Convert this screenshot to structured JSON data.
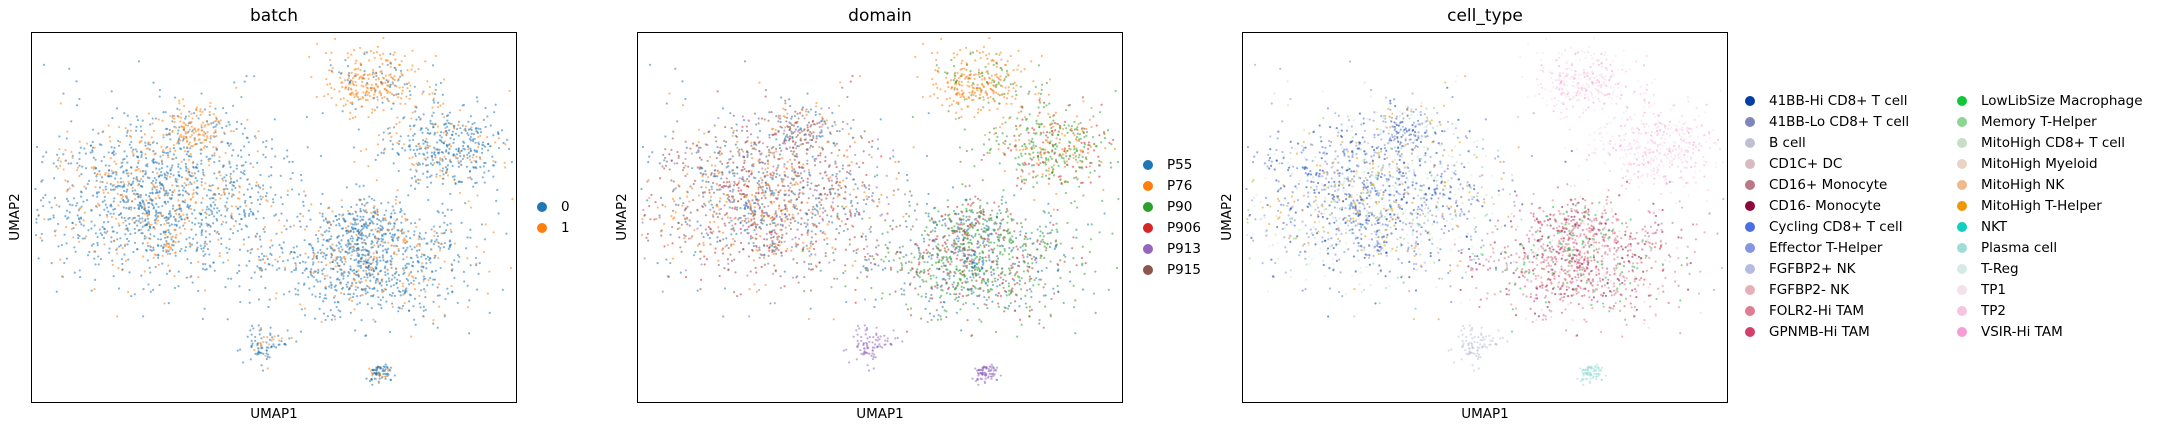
{
  "chart_data": [
    {
      "type": "scatter",
      "title": "batch",
      "xlabel": "UMAP1",
      "ylabel": "UMAP2",
      "grid": false,
      "legend_position": "right",
      "categories": [
        "0",
        "1"
      ],
      "colors": [
        "#1f77b4",
        "#ff7f0e"
      ]
    },
    {
      "type": "scatter",
      "title": "domain",
      "xlabel": "UMAP1",
      "ylabel": "UMAP2",
      "grid": false,
      "legend_position": "right",
      "categories": [
        "P55",
        "P76",
        "P90",
        "P906",
        "P913",
        "P915"
      ],
      "colors": [
        "#1f77b4",
        "#ff7f0e",
        "#2ca02c",
        "#d62728",
        "#9467bd",
        "#8c564b"
      ]
    },
    {
      "type": "scatter",
      "title": "cell_type",
      "xlabel": "UMAP1",
      "ylabel": "UMAP2",
      "grid": false,
      "legend_position": "right, two columns",
      "categories": [
        "41BB-Hi CD8+ T cell",
        "41BB-Lo CD8+ T cell",
        "B cell",
        "CD1C+ DC",
        "CD16+ Monocyte",
        "CD16- Monocyte",
        "Cycling CD8+ T cell",
        "Effector T-Helper",
        "FGFBP2+ NK",
        "FGFBP2- NK",
        "FOLR2-Hi TAM",
        "GPNMB-Hi TAM",
        "LowLibSize Macrophage",
        "Memory T-Helper",
        "MitoHigh CD8+ T cell",
        "MitoHigh Myeloid",
        "MitoHigh NK",
        "MitoHigh T-Helper",
        "NKT",
        "Plasma cell",
        "T-Reg",
        "TP1",
        "TP2",
        "VSIR-Hi TAM"
      ],
      "colors": [
        "#023fa5",
        "#7d87b9",
        "#bec1d4",
        "#d6bcc0",
        "#bb7784",
        "#8e063b",
        "#4a6fe3",
        "#8595e1",
        "#b5bbe3",
        "#e6afb9",
        "#e07b91",
        "#d33f6a",
        "#11c638",
        "#8dd593",
        "#c6dec7",
        "#ead3c6",
        "#f0b98d",
        "#ef9708",
        "#0fcfc0",
        "#9cded6",
        "#d5eae7",
        "#f3e1eb",
        "#f6c4e1",
        "#f79cd4"
      ]
    }
  ]
}
